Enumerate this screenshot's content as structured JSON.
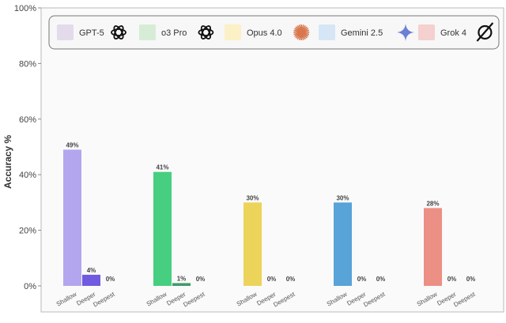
{
  "chart_data": {
    "type": "bar",
    "title": "",
    "xlabel": "",
    "ylabel": "Accuracy %",
    "ylim": [
      0,
      100
    ],
    "yticks": [
      "0%",
      "20%",
      "40%",
      "60%",
      "80%",
      "100%"
    ],
    "categories": [
      "Shallow",
      "Deeper",
      "Deepest"
    ],
    "legend_position": "top",
    "series": [
      {
        "name": "GPT-5",
        "icon": "openai-icon",
        "legend_color": "#e3dbeb",
        "colors": [
          "#b3a6ee",
          "#6f5ae0",
          "#6f5ae0"
        ],
        "values": [
          49,
          4,
          0
        ],
        "labels": [
          "49%",
          "4%",
          "0%"
        ]
      },
      {
        "name": "o3 Pro",
        "icon": "openai-icon",
        "legend_color": "#d6ecd6",
        "colors": [
          "#46cf80",
          "#3e9a6a",
          "#3e9a6a"
        ],
        "values": [
          41,
          1,
          0
        ],
        "labels": [
          "41%",
          "1%",
          "0%"
        ]
      },
      {
        "name": "Opus 4.0",
        "icon": "anthropic-burst-icon",
        "legend_color": "#fbf0c6",
        "colors": [
          "#ecd35a",
          "#ecd35a",
          "#ecd35a"
        ],
        "values": [
          30,
          0,
          0
        ],
        "labels": [
          "30%",
          "0%",
          "0%"
        ]
      },
      {
        "name": "Gemini 2.5",
        "icon": "gemini-star-icon",
        "legend_color": "#d6e6f6",
        "colors": [
          "#58a3d8",
          "#58a3d8",
          "#58a3d8"
        ],
        "values": [
          30,
          0,
          0
        ],
        "labels": [
          "30%",
          "0%",
          "0%"
        ]
      },
      {
        "name": "Grok 4",
        "icon": "grok-icon",
        "legend_color": "#f4d0ce",
        "colors": [
          "#ec8f85",
          "#ec8f85",
          "#ec8f85"
        ],
        "values": [
          28,
          0,
          0
        ],
        "labels": [
          "28%",
          "0%",
          "0%"
        ]
      }
    ]
  }
}
